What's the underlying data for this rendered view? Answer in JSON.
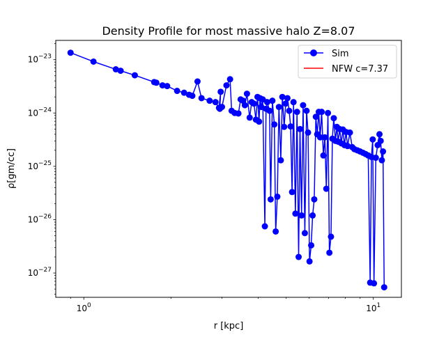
{
  "chart_data": {
    "type": "line",
    "title": "Density Profile for most massive halo Z=8.07",
    "xlabel": "r [kpc]",
    "ylabel": "ρ[gm/cc]",
    "xscale": "log",
    "yscale": "log",
    "xlim": [
      0.8,
      12.5
    ],
    "ylim": [
      3.5e-28,
      2.3e-23
    ],
    "x_ticks": [
      {
        "value": 1,
        "base": "10",
        "exp": "0"
      },
      {
        "value": 10,
        "base": "10",
        "exp": "1"
      }
    ],
    "y_ticks": [
      {
        "value": 1e-27,
        "base": "10",
        "exp": "−27"
      },
      {
        "value": 1e-26,
        "base": "10",
        "exp": "−26"
      },
      {
        "value": 1e-25,
        "base": "10",
        "exp": "−25"
      },
      {
        "value": 1e-24,
        "base": "10",
        "exp": "−24"
      },
      {
        "value": 1e-23,
        "base": "10",
        "exp": "−23"
      }
    ],
    "legend_position": "top-right",
    "series": [
      {
        "name": "Sim",
        "color": "#0000ff",
        "marker": "circle",
        "x": [
          0.9,
          1.08,
          1.29,
          1.34,
          1.5,
          1.75,
          1.78,
          1.87,
          1.94,
          2.1,
          2.22,
          2.31,
          2.37,
          2.47,
          2.55,
          2.72,
          2.85,
          2.93,
          2.97,
          2.95,
          3.0,
          3.11,
          3.2,
          3.24,
          3.32,
          3.42,
          3.48,
          3.55,
          3.6,
          3.66,
          3.74,
          3.8,
          3.87,
          3.93,
          3.98,
          4.03,
          4.06,
          4.1,
          4.15,
          4.22,
          4.26,
          4.3,
          4.38,
          4.42,
          4.48,
          4.55,
          4.6,
          4.66,
          4.72,
          4.79,
          4.85,
          4.92,
          4.98,
          5.05,
          5.12,
          5.18,
          5.24,
          5.3,
          5.38,
          5.45,
          5.52,
          5.58,
          5.65,
          5.72,
          5.8,
          5.88,
          5.95,
          6.02,
          6.1,
          6.17,
          6.25,
          6.33,
          6.4,
          6.48,
          6.55,
          6.63,
          6.72,
          6.8,
          6.88,
          6.97,
          7.05,
          7.14,
          7.22,
          7.3,
          7.4,
          7.48,
          7.56,
          7.65,
          7.75,
          7.85,
          7.95,
          8.05,
          8.15,
          8.3,
          8.45,
          8.6,
          8.8,
          9.0,
          9.2,
          9.4,
          9.6,
          9.75,
          9.85,
          9.95,
          10.05,
          10.2,
          10.35,
          10.5,
          10.6,
          10.7,
          10.8,
          10.9
        ],
        "y": [
          1.35e-23,
          9.2e-24,
          6.6e-24,
          6.2e-24,
          5.1e-24,
          3.8e-24,
          3.7e-24,
          3.3e-24,
          3.2e-24,
          2.6e-24,
          2.4e-24,
          2.2e-24,
          2.1e-24,
          3.9e-24,
          1.9e-24,
          1.7e-24,
          1.6e-24,
          1.25e-24,
          2.5e-24,
          1.2e-24,
          1.3e-24,
          3.3e-24,
          4.3e-24,
          1.1e-24,
          1e-24,
          9.8e-25,
          1.8e-24,
          1.7e-24,
          1.4e-24,
          2.3e-24,
          8.2e-25,
          1.6e-24,
          1.5e-24,
          7.5e-25,
          2e-24,
          6.9e-25,
          1.9e-24,
          1.3e-24,
          1.8e-24,
          7.5e-27,
          1.2e-24,
          1.6e-24,
          1.1e-24,
          2.4e-26,
          1.7e-24,
          6.1e-25,
          6e-27,
          2.7e-26,
          1.3e-24,
          1.3e-25,
          2e-24,
          5.5e-25,
          1.5e-24,
          1.9e-24,
          1.1e-24,
          5.6e-25,
          3.3e-26,
          1.6e-24,
          1.3e-26,
          1.05e-24,
          2e-27,
          5e-25,
          1.2e-26,
          1.4e-24,
          5.6e-27,
          1.1e-24,
          4.3e-25,
          1.65e-27,
          3.3e-27,
          1.2e-26,
          2.4e-26,
          8.5e-25,
          4e-25,
          1.05e-24,
          3.5e-25,
          1.05e-24,
          1.6e-25,
          3.5e-25,
          3.8e-26,
          1e-24,
          2.4e-27,
          4.8e-27,
          3.3e-25,
          8e-25,
          3e-25,
          5.5e-25,
          2.9e-25,
          5e-25,
          2.7e-25,
          4.9e-25,
          2.5e-25,
          4.4e-25,
          2.4e-25,
          4.3e-25,
          2.3e-25,
          2.1e-25,
          2e-25,
          1.9e-25,
          1.8e-25,
          1.7e-25,
          1.6e-25,
          6.6e-28,
          1.5e-25,
          3.2e-25,
          6.4e-28,
          1.45e-25,
          2.5e-25,
          4e-25,
          3e-25,
          1.3e-25,
          1.9e-25,
          5.4e-28
        ]
      },
      {
        "name": "NFW c=7.37",
        "color": "#ff0000",
        "marker": "none",
        "x": [],
        "y": []
      }
    ],
    "grid": false
  }
}
